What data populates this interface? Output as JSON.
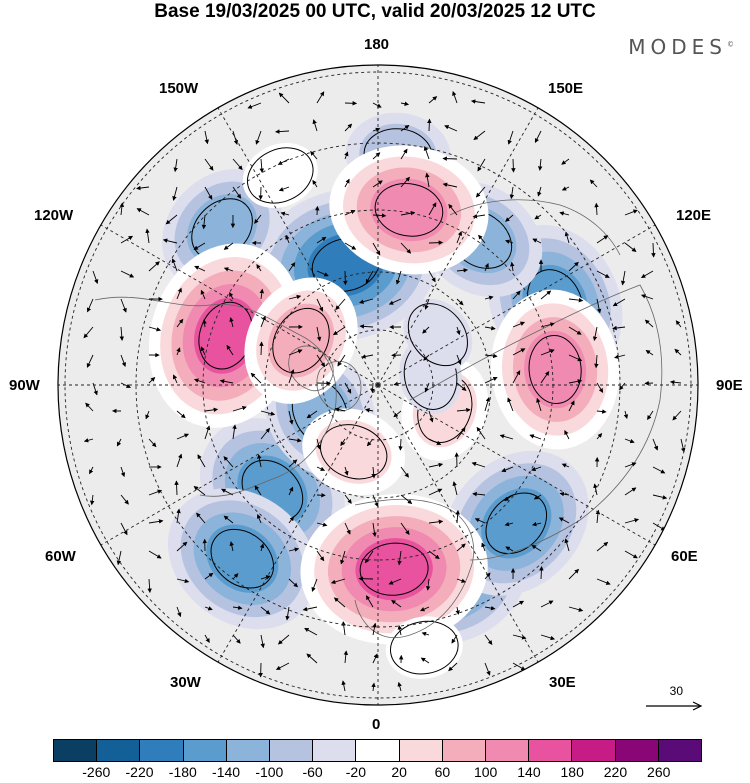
{
  "title": "Base 19/03/2025 00 UTC, valid 20/03/2025 12 UTC",
  "logo": "MODES",
  "logo_mark": "©",
  "longitude_labels": {
    "top": "180",
    "bottom": "0",
    "left": "90W",
    "right": "90E",
    "upper_left_outer": "150W",
    "upper_left_inner": "120W",
    "upper_right_outer": "150E",
    "upper_right_inner": "120E",
    "lower_left_inner": "60W",
    "lower_left_outer": "30W",
    "lower_right_inner": "60E",
    "lower_right_outer": "30E"
  },
  "reference_vector": "30",
  "colorbar": {
    "colors": [
      "#0b3e63",
      "#135f97",
      "#2f7dbb",
      "#5a9ccd",
      "#8cb3d9",
      "#b6c3e0",
      "#dcdded",
      "#ffffff",
      "#fad9dc",
      "#f4adba",
      "#f08ab1",
      "#e8529f",
      "#c71c86",
      "#8a0575",
      "#5b0b77"
    ],
    "ticks": [
      "-260",
      "-220",
      "-180",
      "-140",
      "-100",
      "-60",
      "-20",
      "20",
      "60",
      "100",
      "140",
      "180",
      "220",
      "260"
    ]
  },
  "anomalies": [
    {
      "v": -200,
      "at": [
        -165,
        35
      ]
    },
    {
      "v": -170,
      "at": [
        -45,
        42
      ]
    },
    {
      "v": -150,
      "at": [
        -38,
        62
      ]
    },
    {
      "v": -170,
      "at": [
        20,
        58
      ]
    },
    {
      "v": -150,
      "at": [
        45,
        55
      ]
    },
    {
      "v": -150,
      "at": [
        115,
        55
      ]
    },
    {
      "v": -120,
      "at": [
        145,
        50
      ]
    },
    {
      "v": -130,
      "at": [
        -65,
        18
      ]
    },
    {
      "v": -110,
      "at": [
        -135,
        62
      ]
    },
    {
      "v": -70,
      "at": [
        175,
        65
      ]
    },
    {
      "v": 180,
      "at": [
        -108,
        45
      ]
    },
    {
      "v": 180,
      "at": [
        5,
        52
      ]
    },
    {
      "v": 170,
      "at": [
        95,
        50
      ]
    },
    {
      "v": 170,
      "at": [
        170,
        50
      ]
    },
    {
      "v": 100,
      "at": [
        -120,
        25
      ]
    },
    {
      "v": 80,
      "at": [
        -20,
        20
      ]
    },
    {
      "v": 60,
      "at": [
        70,
        20
      ]
    },
    {
      "v": 40,
      "at": [
        -155,
        65
      ]
    },
    {
      "v": 30,
      "at": [
        10,
        75
      ]
    },
    {
      "v": -40,
      "at": [
        100,
        15
      ]
    },
    {
      "v": -50,
      "at": [
        130,
        22
      ]
    }
  ]
}
